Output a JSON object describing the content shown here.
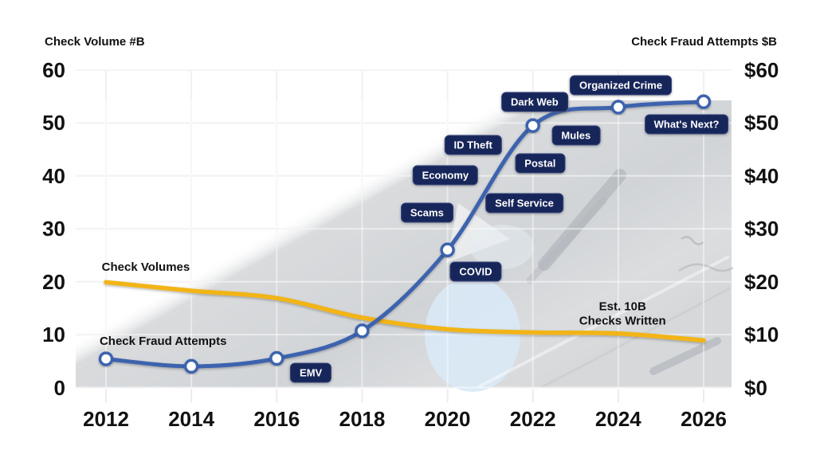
{
  "chart_data": {
    "type": "line",
    "title": "",
    "x": [
      2012,
      2014,
      2016,
      2018,
      2020,
      2022,
      2024,
      2026
    ],
    "x_tick_labels": [
      "2012",
      "2014",
      "2016",
      "2018",
      "2020",
      "2022",
      "2024",
      "2026"
    ],
    "left_axis": {
      "title": "Check Volume #B",
      "tick_labels": [
        "60",
        "50",
        "40",
        "30",
        "20",
        "10",
        "0"
      ],
      "tick_values": [
        60,
        50,
        40,
        30,
        20,
        10,
        0
      ],
      "range": [
        0,
        60
      ]
    },
    "right_axis": {
      "title": "Check Fraud Attempts $B",
      "tick_labels": [
        "$60",
        "$50",
        "$40",
        "$30",
        "$20",
        "$10",
        "$0"
      ],
      "tick_values": [
        60,
        50,
        40,
        30,
        20,
        10,
        0
      ],
      "range": [
        0,
        60
      ]
    },
    "series": [
      {
        "name": "Check Volumes",
        "color": "#F2B418",
        "line_width": 5.5,
        "markers": false,
        "values": [
          19.9,
          18.3,
          16.9,
          13.2,
          11.0,
          10.4,
          10.2,
          8.9
        ]
      },
      {
        "name": "Check Fraud Attempts",
        "color": "#3C63AE",
        "line_width": 5,
        "markers": true,
        "values": [
          5.4,
          4.0,
          5.5,
          10.7,
          26.0,
          49.5,
          53.0,
          54.0
        ]
      }
    ],
    "series_labels": [
      {
        "text": "Check Volumes",
        "year": 2011.9,
        "value": 22.6
      },
      {
        "text": "Check Fraud Attempts",
        "year": 2011.85,
        "value": 8.6
      }
    ],
    "milestone_pills": [
      {
        "text": "EMV",
        "year": 2016.8,
        "value": 2.8
      },
      {
        "text": "COVID",
        "year": 2020.66,
        "value": 21.9
      },
      {
        "text": "Scams",
        "year": 2019.52,
        "value": 33.1
      },
      {
        "text": "Economy",
        "year": 2019.95,
        "value": 40.1
      },
      {
        "text": "ID Theft",
        "year": 2020.6,
        "value": 45.9
      },
      {
        "text": "Self Service",
        "year": 2021.8,
        "value": 34.9
      },
      {
        "text": "Postal",
        "year": 2022.17,
        "value": 42.4
      },
      {
        "text": "Dark Web",
        "year": 2022.04,
        "value": 54.0
      },
      {
        "text": "Mules",
        "year": 2023.01,
        "value": 47.7
      },
      {
        "text": "Organized Crime",
        "year": 2024.06,
        "value": 57.2
      },
      {
        "text": "What's Next?",
        "year": 2025.6,
        "value": 49.8
      }
    ],
    "annotation_text": {
      "lines": [
        "Est. 10B",
        "Checks Written"
      ],
      "year": 2024.1,
      "value": 13.9
    },
    "grid": true,
    "legend_position": "inline",
    "pill_bg": "#17265A",
    "pill_text_color": "#FFFFFF",
    "marker_fill": "#FFFFFF"
  }
}
